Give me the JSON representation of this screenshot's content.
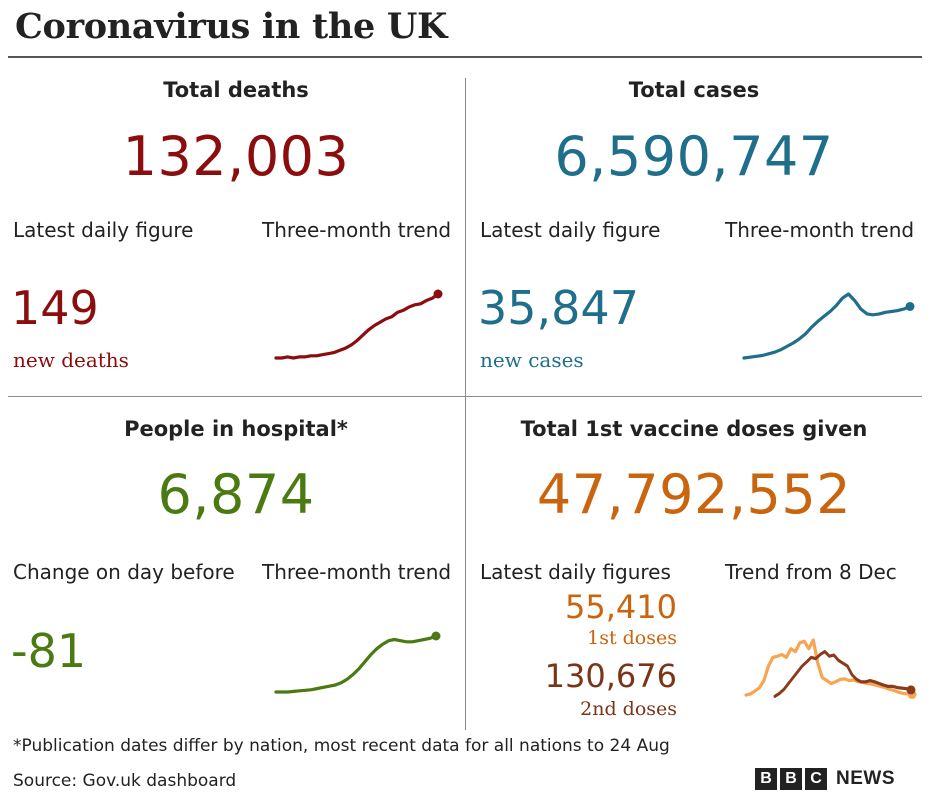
{
  "title": "Coronavirus in the UK",
  "colors": {
    "deaths": "#8b0d0d",
    "cases": "#1f6e8c",
    "hospital": "#4b7a12",
    "dose1": "#c9640f",
    "dose2": "#7a3518",
    "dose1_line": "#f6a550",
    "dose2_line": "#8b3a1c"
  },
  "panels": {
    "deaths": {
      "heading": "Total deaths",
      "total": "132,003",
      "latest_label": "Latest daily figure",
      "trend_label": "Three-month trend",
      "latest_value": "149",
      "latest_unit": "new deaths"
    },
    "cases": {
      "heading": "Total cases",
      "total": "6,590,747",
      "latest_label": "Latest daily figure",
      "trend_label": "Three-month trend",
      "latest_value": "35,847",
      "latest_unit": "new cases"
    },
    "hospital": {
      "heading": "People in hospital*",
      "total": "6,874",
      "latest_label": "Change on day before",
      "trend_label": "Three-month trend",
      "latest_value": "-81"
    },
    "vaccine": {
      "heading": "Total 1st vaccine doses given",
      "total": "47,792,552",
      "latest_label": "Latest daily figures",
      "trend_label": "Trend from 8 Dec",
      "dose1_value": "55,410",
      "dose1_label": "1st doses",
      "dose2_value": "130,676",
      "dose2_label": "2nd doses"
    }
  },
  "footnote": "*Publication dates differ by nation, most recent data for all nations to 24 Aug",
  "source": "Source: Gov.uk dashboard",
  "logo": {
    "letters": [
      "B",
      "B",
      "C"
    ],
    "word": "NEWS"
  },
  "chart_data": [
    {
      "type": "line",
      "title": "Three-month trend",
      "series": [
        {
          "values": [
            10,
            10,
            11,
            10,
            11,
            11,
            12,
            12,
            13,
            14,
            15,
            17,
            19,
            22,
            26,
            31,
            36,
            40,
            43,
            46,
            48,
            52,
            54,
            57,
            59,
            60,
            63,
            65,
            69
          ]
        }
      ]
    },
    {
      "type": "line",
      "title": "Three-month trend",
      "series": [
        {
          "values": [
            3,
            4,
            5,
            6,
            8,
            10,
            13,
            17,
            21,
            26,
            32,
            40,
            47,
            53,
            59,
            66,
            75,
            80,
            72,
            62,
            56,
            55,
            56,
            58,
            59,
            60,
            62,
            65
          ]
        }
      ]
    },
    {
      "type": "line",
      "title": "Three-month trend",
      "series": [
        {
          "values": [
            1,
            1,
            1,
            1.5,
            2,
            2.5,
            3,
            4,
            5,
            6,
            7,
            9,
            12,
            16,
            21,
            27,
            33,
            38,
            42,
            45,
            46,
            45,
            44,
            44,
            45,
            46,
            47,
            49
          ]
        }
      ]
    },
    {
      "type": "line",
      "title": "Trend from 8 Dec",
      "series": [
        {
          "values": [
            5,
            7,
            12,
            18,
            30,
            55,
            70,
            72,
            75,
            70,
            85,
            80,
            95,
            98,
            85,
            100,
            60,
            35,
            30,
            25,
            28,
            32,
            33,
            30,
            31,
            28,
            27,
            25,
            24,
            22,
            20,
            18,
            15,
            13,
            10,
            8,
            7,
            6
          ]
        },
        {
          "values": [
            0,
            0,
            0,
            0,
            0,
            0,
            0,
            0,
            0,
            0,
            0,
            0,
            0,
            0,
            0,
            0,
            3,
            8,
            15,
            25,
            35,
            45,
            55,
            62,
            70,
            68,
            75,
            80,
            72,
            74,
            65,
            60,
            55,
            40,
            32,
            28,
            28,
            30,
            28,
            25,
            22,
            20,
            20,
            18,
            17,
            16,
            14
          ]
        }
      ]
    }
  ]
}
